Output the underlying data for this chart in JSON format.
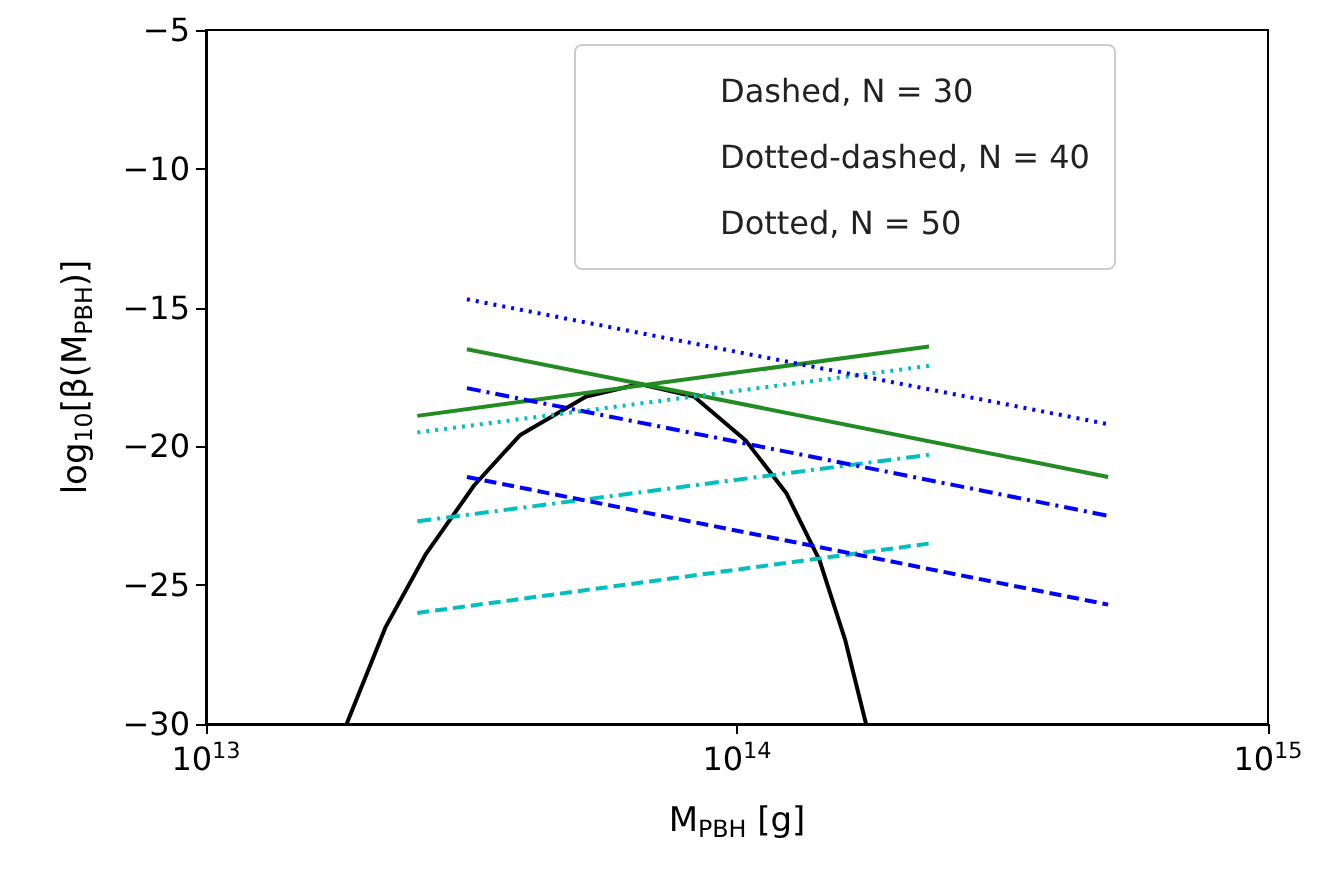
{
  "chart_data": {
    "type": "line",
    "xlabel": "M$_{PBH}$ [g]",
    "ylabel": "log$_{10}$[β(M$_{PBH}$)]",
    "log": "x",
    "xlim": [
      10000000000000.0,
      1000000000000000.0
    ],
    "xticks": [
      {
        "value": 10000000000000.0,
        "label": "10$^{13}$"
      },
      {
        "value": 100000000000000.0,
        "label": "10$^{14}$"
      },
      {
        "value": 1000000000000000.0,
        "label": "10$^{15}$"
      }
    ],
    "ylim": [
      -30,
      -5
    ],
    "yticks": [
      {
        "value": -30,
        "label": "−30"
      },
      {
        "value": -25,
        "label": "−25"
      },
      {
        "value": -20,
        "label": "−20"
      },
      {
        "value": -15,
        "label": "−15"
      },
      {
        "value": -10,
        "label": "−10"
      },
      {
        "value": -5,
        "label": "−5"
      }
    ],
    "grid": false,
    "marker": "none",
    "annotations": [
      "Dashed, N = 30",
      "Dotted-dashed, N = 40",
      "Dotted, N = 50"
    ],
    "series": [
      {
        "color": "#000000",
        "line_style": "solid",
        "x": [
          18400000000000.0,
          21800000000000.0,
          25900000000000.0,
          32000000000000.0,
          39000000000000.0,
          52000000000000.0,
          65600000000000.0,
          83000000000000.0,
          104000000000000.0,
          124000000000000.0,
          143000000000000.0,
          160000000000000.0,
          175000000000000.0
        ],
        "values": [
          -30,
          -26.5,
          -23.9,
          -21.4,
          -19.6,
          -18.2,
          -17.75,
          -18.2,
          -19.8,
          -21.7,
          -24.1,
          -27.0,
          -30
        ]
      },
      {
        "color": "#228b22",
        "line_style": "solid",
        "x": [
          25000000000000.0,
          230000000000000.0
        ],
        "values": [
          -18.9,
          -16.4
        ]
      },
      {
        "color": "#228b22",
        "line_style": "solid",
        "x": [
          31000000000000.0,
          500000000000000.0
        ],
        "values": [
          -16.5,
          -21.1
        ]
      },
      {
        "color": "#00bfbf",
        "line_style": "dotted",
        "x": [
          25000000000000.0,
          230000000000000.0
        ],
        "values": [
          -19.5,
          -17.1
        ]
      },
      {
        "color": "#0000ff",
        "line_style": "dotted",
        "x": [
          31000000000000.0,
          500000000000000.0
        ],
        "values": [
          -14.7,
          -19.2
        ]
      },
      {
        "color": "#00bfbf",
        "line_style": "dashdot",
        "x": [
          25000000000000.0,
          230000000000000.0
        ],
        "values": [
          -22.7,
          -20.3
        ]
      },
      {
        "color": "#0000ff",
        "line_style": "dashdot",
        "x": [
          31000000000000.0,
          500000000000000.0
        ],
        "values": [
          -17.9,
          -22.5
        ]
      },
      {
        "color": "#00bfbf",
        "line_style": "dashed",
        "x": [
          25000000000000.0,
          230000000000000.0
        ],
        "values": [
          -26.0,
          -23.5
        ]
      },
      {
        "color": "#0000ff",
        "line_style": "dashed",
        "x": [
          31000000000000.0,
          500000000000000.0
        ],
        "values": [
          -21.1,
          -25.7
        ]
      }
    ]
  }
}
